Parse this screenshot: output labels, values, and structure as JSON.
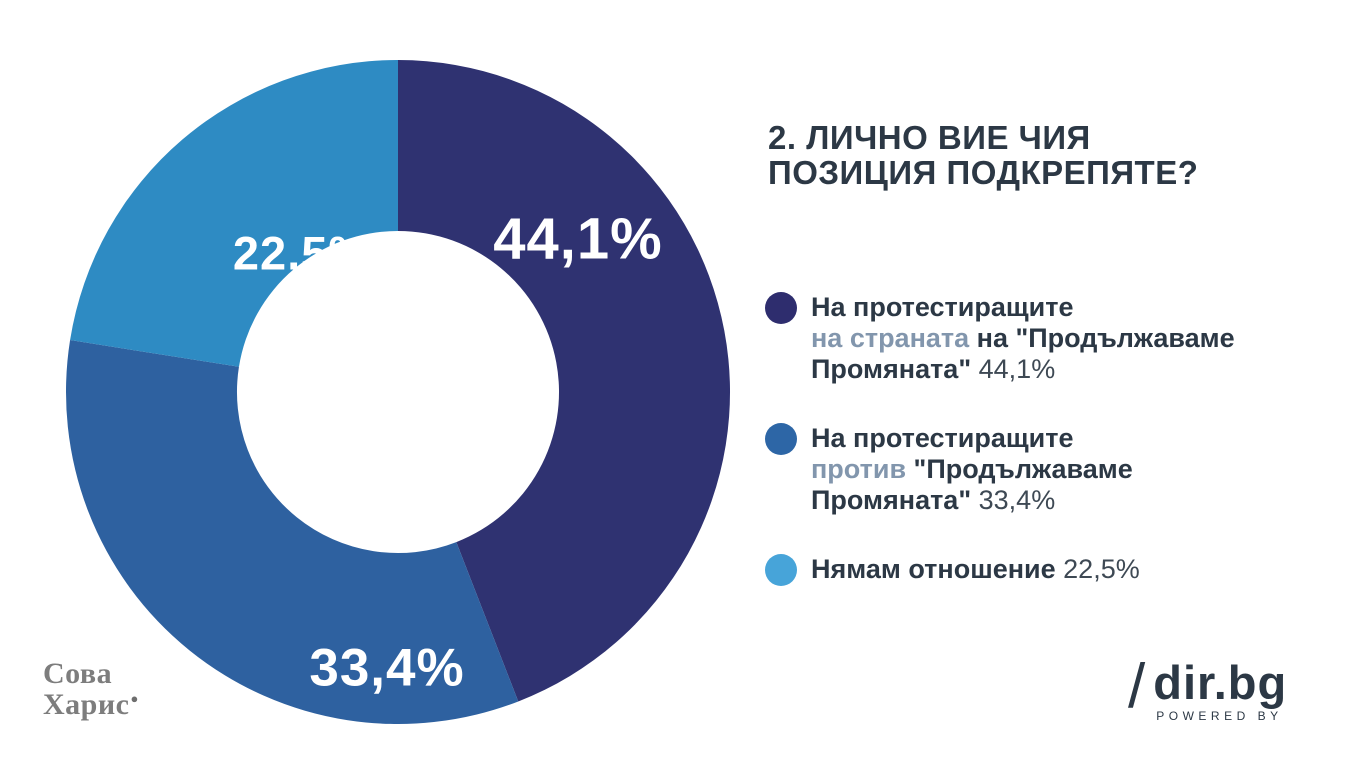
{
  "title": {
    "lines": [
      "2. ЛИЧНО ВИЕ ЧИЯ",
      "ПОЗИЦИЯ ПОДКРЕПЯТЕ?"
    ],
    "color": "#2c3845"
  },
  "chart_data": {
    "type": "pie",
    "donut": true,
    "start_angle_deg": 0,
    "direction": "clockwise",
    "inner_radius_ratio": 0.485,
    "title": "2. ЛИЧНО ВИЕ ЧИЯ ПОЗИЦИЯ ПОДКРЕПЯТЕ?",
    "categories": [
      "На протестиращите на страната на \"Продължаваме Промяната\"",
      "На протестиращите против \"Продължаваме Промяната\"",
      "Нямам отношение"
    ],
    "values": [
      44.1,
      33.4,
      22.5
    ],
    "labels": [
      "44,1%",
      "33,4%",
      "22,5%"
    ],
    "colors": [
      "#2f3271",
      "#2e61a0",
      "#2e8bc3"
    ],
    "legend_position": "right"
  },
  "legend": {
    "items": [
      {
        "bullet_color": "#2e2d6e",
        "segments": [
          {
            "text": "На протестиращите",
            "style": "bold"
          },
          {
            "br": true
          },
          {
            "text": "на страната",
            "style": "accent"
          },
          {
            "text": " на \"Продължаваме",
            "style": "bold"
          },
          {
            "br": true
          },
          {
            "text": "Промяната\" ",
            "style": "bold"
          },
          {
            "text": "44,1%",
            "style": "value"
          }
        ]
      },
      {
        "bullet_color": "#2d66a6",
        "segments": [
          {
            "text": "На протестиращите",
            "style": "bold"
          },
          {
            "br": true
          },
          {
            "text": "против",
            "style": "accent"
          },
          {
            "text": " \"Продължаваме",
            "style": "bold"
          },
          {
            "br": true
          },
          {
            "text": "Промяната\" ",
            "style": "bold"
          },
          {
            "text": "33,4%",
            "style": "value"
          }
        ]
      },
      {
        "bullet_color": "#47a4d9",
        "segments": [
          {
            "text": "Нямам отношение ",
            "style": "bold"
          },
          {
            "text": "22,5%",
            "style": "value"
          }
        ]
      }
    ]
  },
  "footer": {
    "sova": {
      "line1": "Сова",
      "line2": "Харис",
      "mark": "●"
    },
    "dir": {
      "slash": "/",
      "name": "dir.bg",
      "powered": "POWERED BY"
    }
  }
}
